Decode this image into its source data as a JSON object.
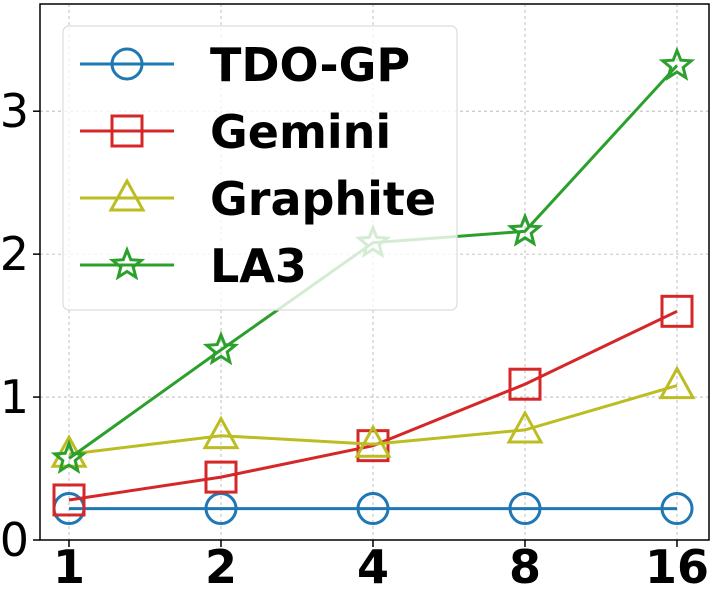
{
  "chart_data": {
    "type": "line",
    "categories": [
      "1",
      "2",
      "4",
      "8",
      "16"
    ],
    "yticks": [
      "0",
      "1",
      "2",
      "3"
    ],
    "ylim": [
      0,
      3.75
    ],
    "grid": true,
    "legend_position": "top-left",
    "series": [
      {
        "name": "TDO-GP",
        "color": "#1f77b4",
        "marker": "circle",
        "values": [
          0.22,
          0.22,
          0.22,
          0.22,
          0.22
        ]
      },
      {
        "name": "Gemini",
        "color": "#d62728",
        "marker": "square",
        "values": [
          0.28,
          0.44,
          0.66,
          1.09,
          1.6
        ]
      },
      {
        "name": "Graphite",
        "color": "#bcbd22",
        "marker": "triangle",
        "values": [
          0.6,
          0.73,
          0.67,
          0.77,
          1.08
        ]
      },
      {
        "name": "LA3",
        "color": "#2ca02c",
        "marker": "star",
        "values": [
          0.57,
          1.33,
          2.08,
          2.16,
          3.32
        ]
      }
    ]
  }
}
